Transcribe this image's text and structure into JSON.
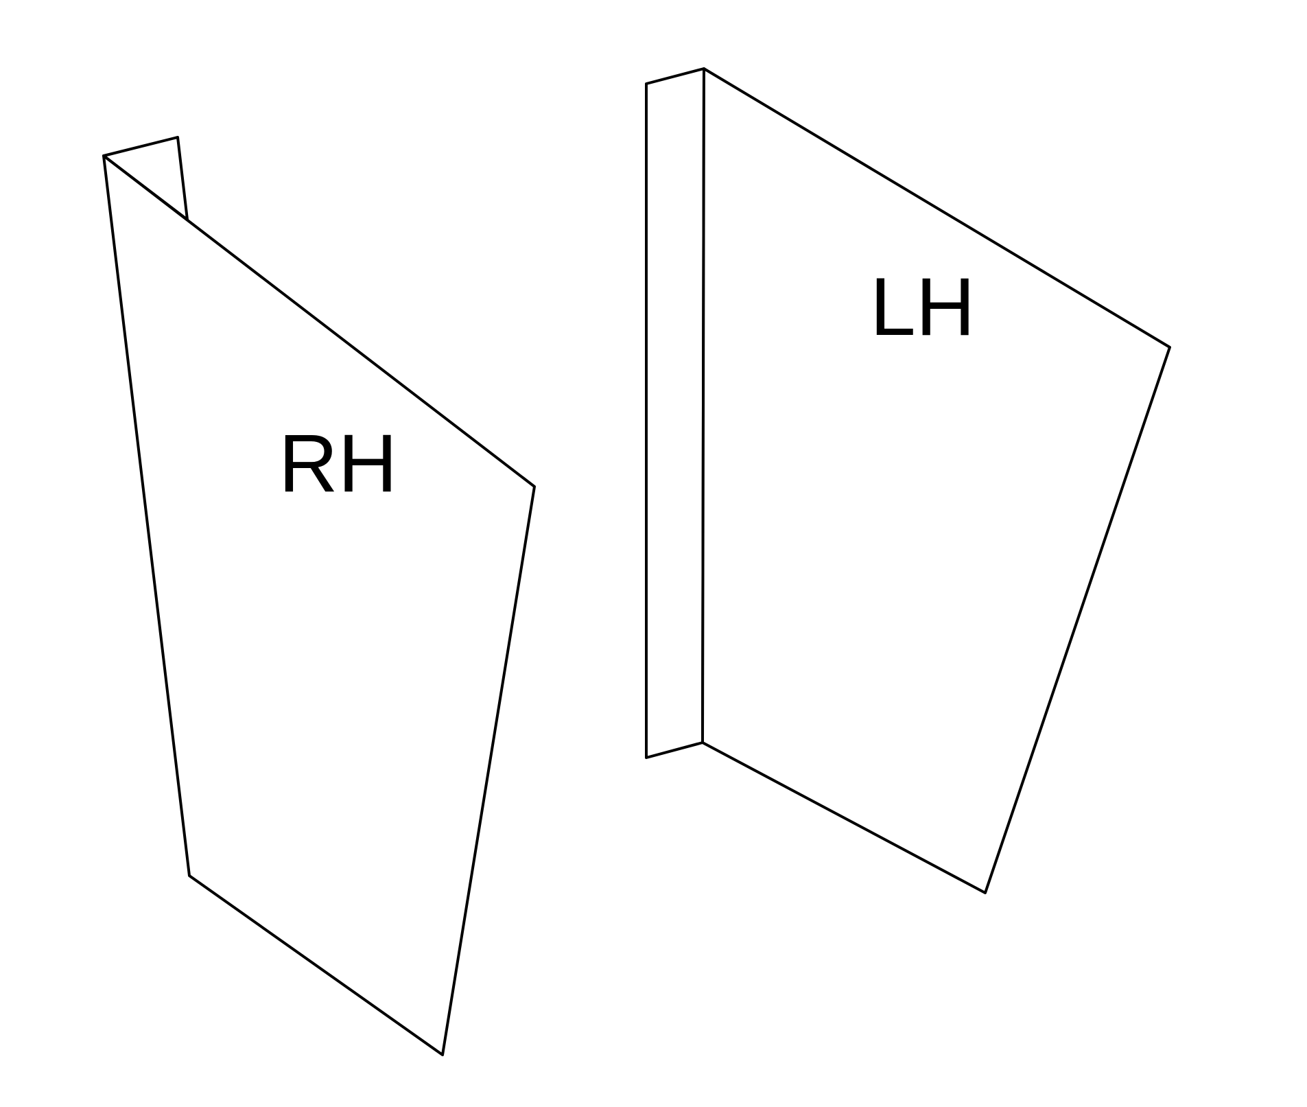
{
  "parts": {
    "rh": {
      "label": "RH"
    },
    "lh": {
      "label": "LH"
    }
  },
  "colors": {
    "background": "#ffffff",
    "stroke": "#000000"
  }
}
